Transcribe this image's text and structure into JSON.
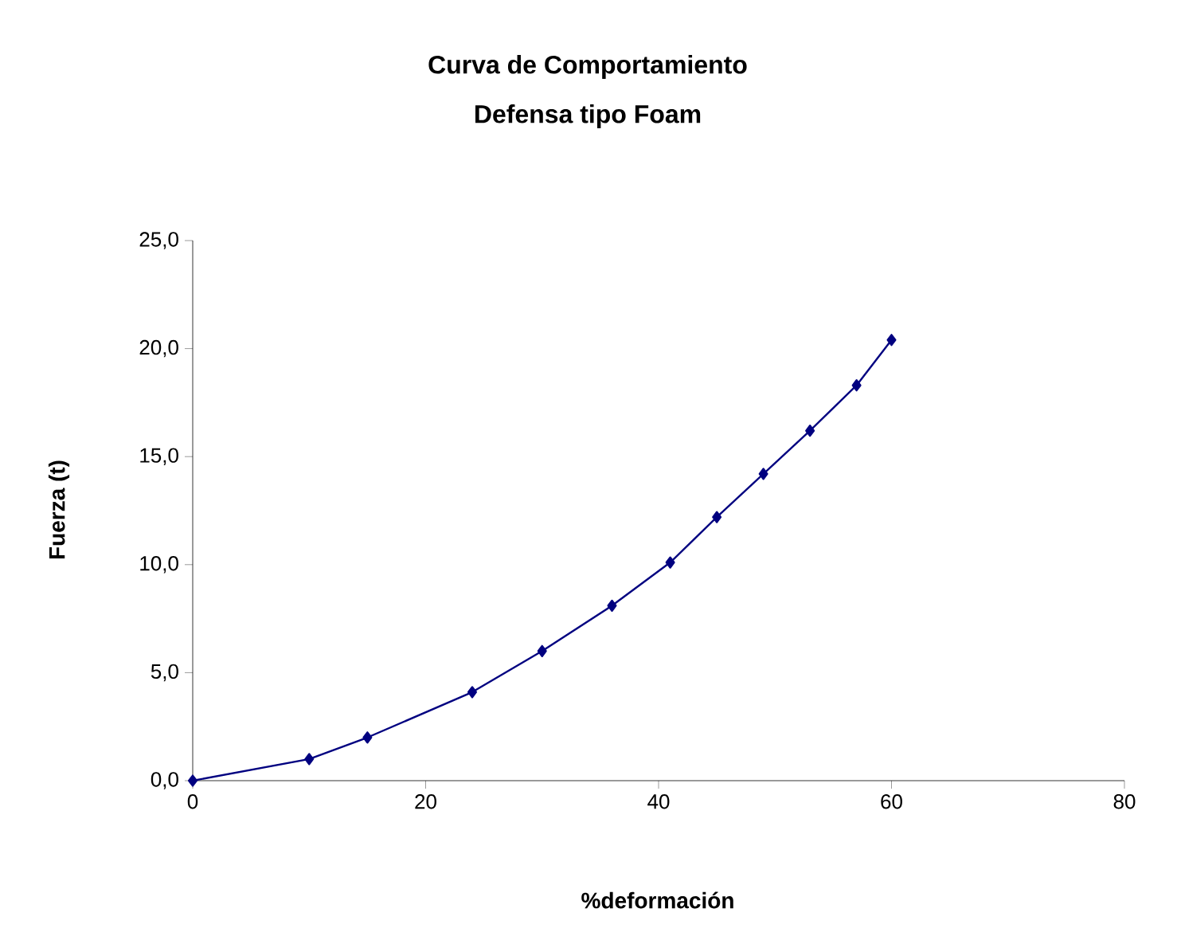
{
  "chart_data": {
    "type": "line",
    "title": "Curva de Comportamiento",
    "subtitle": "Defensa tipo Foam",
    "xlabel": "%deformación",
    "ylabel": "Fuerza (t)",
    "x": [
      0,
      10,
      15,
      24,
      30,
      36,
      41,
      45,
      49,
      53,
      57,
      60
    ],
    "series": [
      {
        "color": "#000080",
        "values": [
          0.0,
          1.0,
          2.0,
          4.1,
          6.0,
          8.1,
          10.1,
          12.2,
          14.2,
          16.2,
          18.3,
          20.4
        ]
      }
    ],
    "xlim": [
      0,
      80
    ],
    "xticks": [
      0,
      20,
      40,
      60,
      80
    ],
    "ylim": [
      0,
      25
    ],
    "yticks": [
      {
        "value": 0,
        "label": "0,0"
      },
      {
        "value": 5,
        "label": "5,0"
      },
      {
        "value": 10,
        "label": "10,0"
      },
      {
        "value": 15,
        "label": "15,0"
      },
      {
        "value": 20,
        "label": "20,0"
      },
      {
        "value": 25,
        "label": "25,0"
      }
    ],
    "grid": false,
    "marker": "diamond",
    "line_style": "solid"
  }
}
